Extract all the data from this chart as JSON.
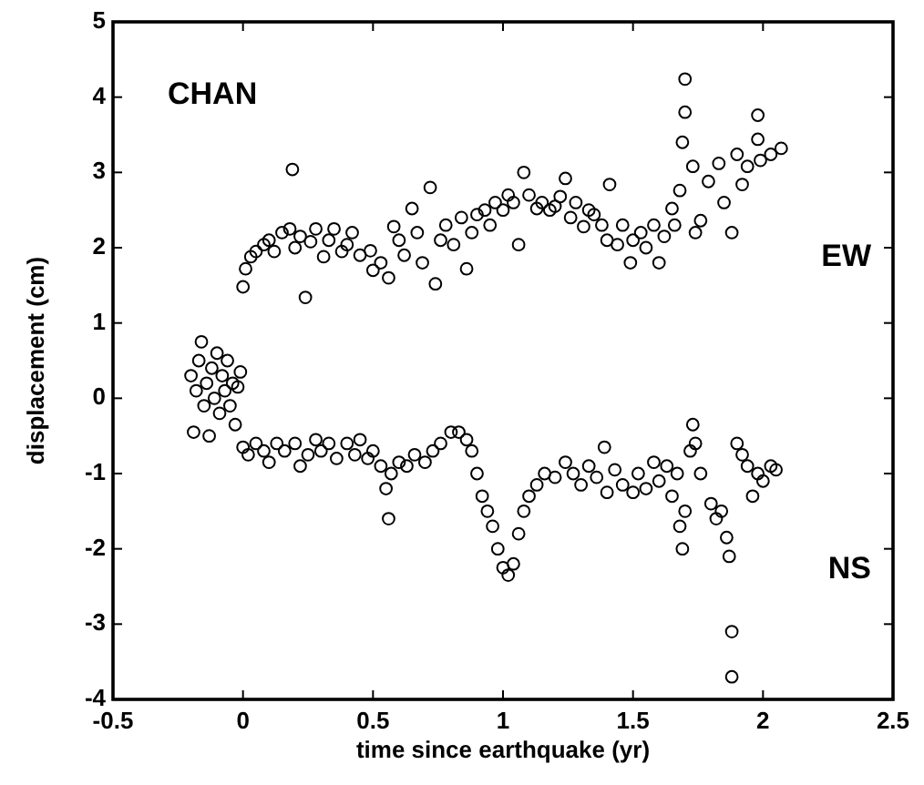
{
  "chart_data": {
    "type": "scatter",
    "xlabel": "time since earthquake (yr)",
    "ylabel": "displacement (cm)",
    "annotations": [
      "CHAN"
    ],
    "marker": "circle",
    "grid": false,
    "legend": "right",
    "xlim": [
      -0.5,
      2.5
    ],
    "xticks": [
      -0.5,
      0,
      0.5,
      1,
      1.5,
      2,
      2.5
    ],
    "ylim": [
      -4,
      5
    ],
    "yticks": [
      -4,
      -3,
      -2,
      -1,
      0,
      1,
      2,
      3,
      4,
      5
    ],
    "series": [
      {
        "name": "EW",
        "color": "#000000",
        "x": [
          0,
          0.01,
          0.03,
          0.05,
          0.08,
          0.1,
          0.12,
          0.15,
          0.18,
          0.19,
          0.2,
          0.22,
          0.24,
          0.26,
          0.28,
          0.31,
          0.33,
          0.35,
          0.38,
          0.4,
          0.42,
          0.45,
          0.49,
          0.5,
          0.53,
          0.56,
          0.58,
          0.6,
          0.62,
          0.65,
          0.67,
          0.69,
          0.72,
          0.74,
          0.76,
          0.78,
          0.81,
          0.84,
          0.86,
          0.88,
          0.9,
          0.93,
          0.95,
          0.97,
          1.0,
          1.02,
          1.04,
          1.06,
          1.08,
          1.1,
          1.13,
          1.15,
          1.18,
          1.2,
          1.22,
          1.24,
          1.26,
          1.28,
          1.31,
          1.33,
          1.35,
          1.38,
          1.4,
          1.41,
          1.44,
          1.46,
          1.49,
          1.5,
          1.53,
          1.55,
          1.58,
          1.6,
          1.62,
          1.65,
          1.66,
          1.68,
          1.69,
          1.7,
          1.7,
          1.73,
          1.74,
          1.76,
          1.79,
          1.83,
          1.85,
          1.88,
          1.9,
          1.92,
          1.94,
          1.98,
          1.98,
          1.99,
          2.03,
          2.07
        ],
        "values": [
          1.48,
          1.72,
          1.88,
          1.95,
          2.04,
          2.1,
          1.95,
          2.2,
          2.25,
          3.04,
          2.0,
          2.15,
          1.34,
          2.08,
          2.25,
          1.88,
          2.1,
          2.25,
          1.95,
          2.04,
          2.2,
          1.9,
          1.96,
          1.7,
          1.8,
          1.6,
          2.28,
          2.1,
          1.9,
          2.52,
          2.2,
          1.8,
          2.8,
          1.52,
          2.1,
          2.3,
          2.04,
          2.4,
          1.72,
          2.2,
          2.44,
          2.5,
          2.3,
          2.6,
          2.5,
          2.7,
          2.6,
          2.04,
          3.0,
          2.7,
          2.52,
          2.6,
          2.5,
          2.55,
          2.68,
          2.92,
          2.4,
          2.6,
          2.28,
          2.5,
          2.44,
          2.3,
          2.1,
          2.84,
          2.04,
          2.3,
          1.8,
          2.1,
          2.2,
          2.0,
          2.3,
          1.8,
          2.15,
          2.52,
          2.3,
          2.76,
          3.4,
          4.24,
          3.8,
          3.08,
          2.2,
          2.36,
          2.88,
          3.12,
          2.6,
          2.2,
          3.24,
          2.84,
          3.08,
          3.76,
          3.44,
          3.16,
          3.24,
          3.32
        ]
      },
      {
        "name": "NS",
        "color": "#000000",
        "x": [
          -0.2,
          -0.19,
          -0.18,
          -0.17,
          -0.16,
          -0.15,
          -0.14,
          -0.13,
          -0.12,
          -0.11,
          -0.1,
          -0.09,
          -0.08,
          -0.07,
          -0.06,
          -0.05,
          -0.04,
          -0.03,
          -0.02,
          -0.01,
          0,
          0.02,
          0.05,
          0.08,
          0.1,
          0.13,
          0.16,
          0.2,
          0.22,
          0.25,
          0.28,
          0.3,
          0.33,
          0.36,
          0.4,
          0.43,
          0.45,
          0.48,
          0.5,
          0.53,
          0.55,
          0.56,
          0.57,
          0.6,
          0.63,
          0.66,
          0.7,
          0.73,
          0.76,
          0.8,
          0.83,
          0.86,
          0.88,
          0.9,
          0.92,
          0.94,
          0.96,
          0.98,
          1.0,
          1.02,
          1.04,
          1.06,
          1.08,
          1.1,
          1.13,
          1.16,
          1.2,
          1.24,
          1.27,
          1.3,
          1.33,
          1.36,
          1.39,
          1.4,
          1.43,
          1.46,
          1.5,
          1.52,
          1.55,
          1.58,
          1.6,
          1.63,
          1.65,
          1.67,
          1.68,
          1.69,
          1.7,
          1.72,
          1.73,
          1.74,
          1.76,
          1.8,
          1.82,
          1.84,
          1.86,
          1.87,
          1.88,
          1.88,
          1.9,
          1.92,
          1.94,
          1.96,
          1.98,
          2.0,
          2.03,
          2.05
        ],
        "values": [
          0.3,
          -0.45,
          0.1,
          0.5,
          0.75,
          -0.1,
          0.2,
          -0.5,
          0.4,
          0.0,
          0.6,
          -0.2,
          0.3,
          0.1,
          0.5,
          -0.1,
          0.2,
          -0.35,
          0.15,
          0.35,
          -0.65,
          -0.75,
          -0.6,
          -0.7,
          -0.85,
          -0.6,
          -0.7,
          -0.6,
          -0.9,
          -0.75,
          -0.55,
          -0.7,
          -0.6,
          -0.8,
          -0.6,
          -0.75,
          -0.55,
          -0.8,
          -0.7,
          -0.9,
          -1.2,
          -1.6,
          -1.0,
          -0.85,
          -0.9,
          -0.75,
          -0.85,
          -0.7,
          -0.6,
          -0.45,
          -0.45,
          -0.55,
          -0.7,
          -1.0,
          -1.3,
          -1.5,
          -1.7,
          -2.0,
          -2.25,
          -2.35,
          -2.2,
          -1.8,
          -1.5,
          -1.3,
          -1.15,
          -1.0,
          -1.05,
          -0.85,
          -1.0,
          -1.15,
          -0.9,
          -1.05,
          -0.65,
          -1.25,
          -0.95,
          -1.15,
          -1.25,
          -1.0,
          -1.2,
          -0.85,
          -1.1,
          -0.9,
          -1.3,
          -1.0,
          -1.7,
          -2.0,
          -1.5,
          -0.7,
          -0.35,
          -0.6,
          -1.0,
          -1.4,
          -1.6,
          -1.5,
          -1.85,
          -2.1,
          -3.1,
          -3.7,
          -0.6,
          -0.75,
          -0.9,
          -1.3,
          -1.0,
          -1.1,
          -0.9,
          -0.95
        ]
      }
    ]
  }
}
